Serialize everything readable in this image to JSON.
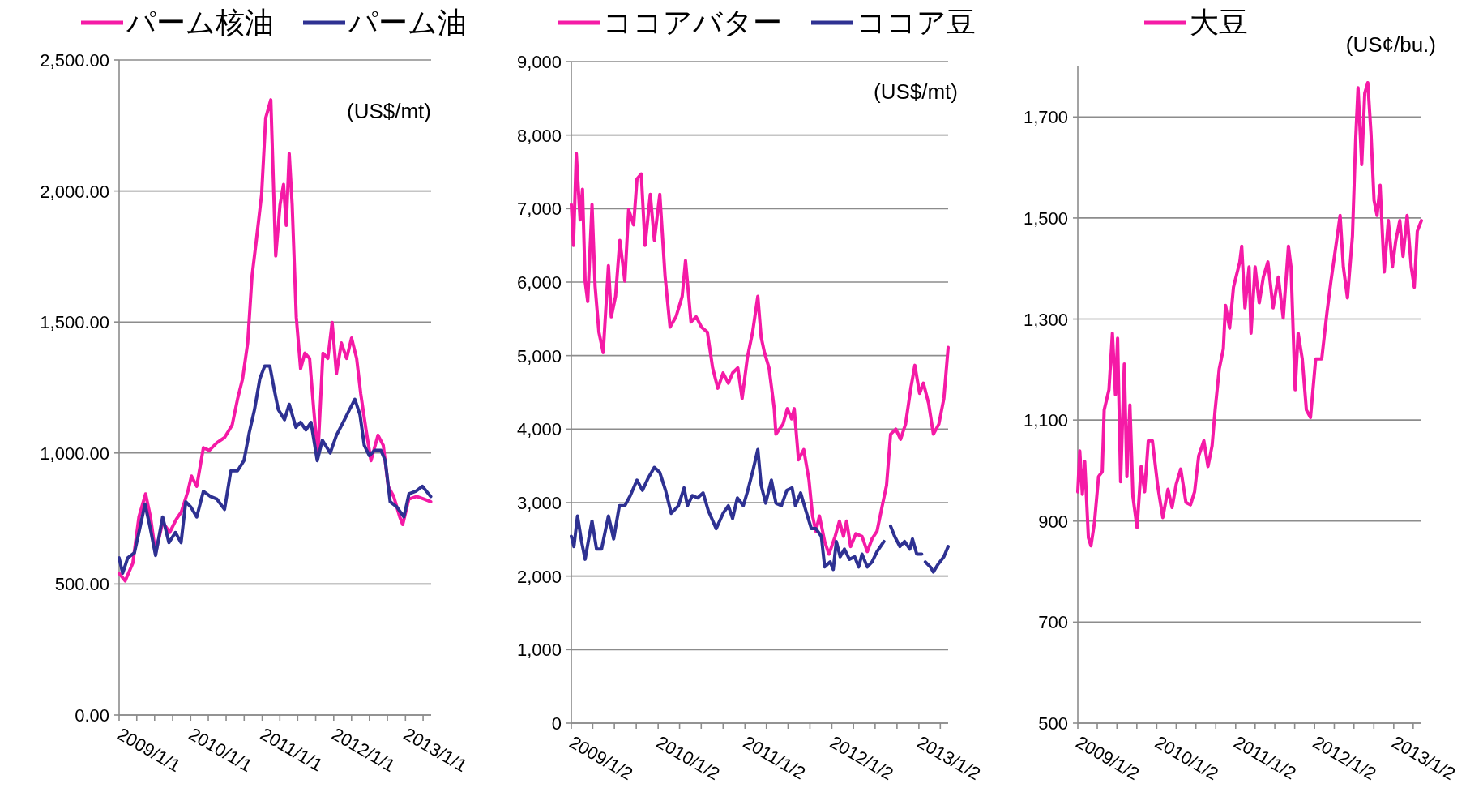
{
  "chart_data": [
    {
      "type": "line",
      "grid": "y",
      "legend": "top",
      "annotations": [
        "(US$/mt)"
      ],
      "xlim": [
        "2009-01-01",
        "2013-05-12"
      ],
      "xticks": [
        {
          "value": "2009-01-01",
          "label": "2009/1/1"
        },
        {
          "value": "2009-04-01",
          "label": null
        },
        {
          "value": "2009-07-01",
          "label": null
        },
        {
          "value": "2009-10-01",
          "label": null
        },
        {
          "value": "2010-01-01",
          "label": "2010/1/1"
        },
        {
          "value": "2010-04-01",
          "label": null
        },
        {
          "value": "2010-07-01",
          "label": null
        },
        {
          "value": "2010-10-01",
          "label": null
        },
        {
          "value": "2011-01-01",
          "label": "2011/1/1"
        },
        {
          "value": "2011-04-01",
          "label": null
        },
        {
          "value": "2011-07-01",
          "label": null
        },
        {
          "value": "2011-10-01",
          "label": null
        },
        {
          "value": "2012-01-01",
          "label": "2012/1/1"
        },
        {
          "value": "2012-04-01",
          "label": null
        },
        {
          "value": "2012-07-01",
          "label": null
        },
        {
          "value": "2012-10-01",
          "label": null
        },
        {
          "value": "2013-01-01",
          "label": "2013/1/1"
        },
        {
          "value": "2013-04-01",
          "label": null
        }
      ],
      "ylim": [
        0,
        2500
      ],
      "yticks": [
        {
          "value": 0,
          "label": "0.00"
        },
        {
          "value": 500,
          "label": "500.00"
        },
        {
          "value": 1000,
          "label": "1,000.00"
        },
        {
          "value": 1500,
          "label": "1,500.00"
        },
        {
          "value": 2000,
          "label": "2,000.00"
        },
        {
          "value": 2500,
          "label": "2,500.00"
        }
      ],
      "series": [
        {
          "name": "パーム核油",
          "color": "#f51aa6",
          "x": [
            "2009-01-01",
            "2009-02-01",
            "2009-03-12",
            "2009-04-12",
            "2009-05-16",
            "2009-06-10",
            "2009-07-06",
            "2009-08-11",
            "2009-09-16",
            "2009-10-19",
            "2009-11-14",
            "2009-12-18",
            "2010-01-05",
            "2010-02-01",
            "2010-03-07",
            "2010-04-06",
            "2010-05-15",
            "2010-06-23",
            "2010-08-01",
            "2010-08-28",
            "2010-09-23",
            "2010-10-19",
            "2010-11-10",
            "2010-12-02",
            "2010-12-29",
            "2011-01-19",
            "2011-02-14",
            "2011-03-11",
            "2011-04-02",
            "2011-04-20",
            "2011-05-04",
            "2011-05-19",
            "2011-06-03",
            "2011-06-24",
            "2011-07-16",
            "2011-08-07",
            "2011-08-31",
            "2011-09-21",
            "2011-10-12",
            "2011-11-07",
            "2011-12-02",
            "2011-12-24",
            "2012-01-15",
            "2012-02-09",
            "2012-03-07",
            "2012-04-01",
            "2012-04-27",
            "2012-05-18",
            "2012-06-14",
            "2012-07-09",
            "2012-08-14",
            "2012-09-10",
            "2012-10-05",
            "2012-11-02",
            "2012-12-03",
            "2012-12-18",
            "2013-01-18",
            "2013-02-27",
            "2013-04-06",
            "2013-05-10"
          ],
          "values": [
            541,
            512,
            580,
            756,
            844,
            756,
            619,
            736,
            697,
            746,
            775,
            854,
            912,
            873,
            1020,
            1010,
            1039,
            1059,
            1107,
            1205,
            1283,
            1420,
            1674,
            1811,
            1986,
            2279,
            2348,
            1752,
            1947,
            2025,
            1869,
            2143,
            1947,
            1518,
            1322,
            1381,
            1361,
            1166,
            990,
            1381,
            1361,
            1498,
            1303,
            1420,
            1361,
            1439,
            1361,
            1225,
            1088,
            971,
            1068,
            1029,
            873,
            834,
            756,
            727,
            824,
            834,
            824,
            814
          ]
        },
        {
          "name": "パーム油",
          "color": "#2e3192",
          "x": [
            "2009-01-01",
            "2009-01-19",
            "2009-02-14",
            "2009-03-20",
            "2009-04-12",
            "2009-05-13",
            "2009-06-08",
            "2009-07-06",
            "2009-08-11",
            "2009-09-12",
            "2009-10-15",
            "2009-11-13",
            "2009-12-07",
            "2010-01-01",
            "2010-02-01",
            "2010-03-07",
            "2010-04-12",
            "2010-05-15",
            "2010-06-23",
            "2010-07-25",
            "2010-08-28",
            "2010-09-30",
            "2010-10-27",
            "2010-11-23",
            "2010-12-20",
            "2011-01-14",
            "2011-02-09",
            "2011-03-03",
            "2011-03-24",
            "2011-04-25",
            "2011-05-19",
            "2011-06-22",
            "2011-07-16",
            "2011-08-12",
            "2011-09-07",
            "2011-10-09",
            "2011-11-04",
            "2011-12-14",
            "2012-01-15",
            "2012-02-18",
            "2012-03-22",
            "2012-04-18",
            "2012-05-14",
            "2012-06-05",
            "2012-07-01",
            "2012-07-27",
            "2012-08-29",
            "2012-09-20",
            "2012-10-15",
            "2012-11-17",
            "2012-12-24",
            "2013-01-19",
            "2013-02-23",
            "2013-03-28",
            "2013-04-18",
            "2013-05-10"
          ],
          "values": [
            600,
            541,
            600,
            619,
            697,
            805,
            717,
            609,
            756,
            658,
            697,
            658,
            814,
            795,
            756,
            854,
            834,
            824,
            785,
            932,
            932,
            971,
            1078,
            1166,
            1283,
            1332,
            1332,
            1244,
            1166,
            1127,
            1186,
            1098,
            1117,
            1088,
            1117,
            971,
            1049,
            1000,
            1068,
            1117,
            1166,
            1205,
            1146,
            1029,
            990,
            1010,
            1010,
            971,
            814,
            795,
            756,
            844,
            854,
            873,
            854,
            834
          ]
        }
      ]
    },
    {
      "type": "line",
      "grid": "y",
      "legend": "top",
      "annotations": [
        "(US$/mt)"
      ],
      "xlim": [
        "2009-01-02",
        "2013-05-05"
      ],
      "xticks": [
        {
          "value": "2009-01-02",
          "label": "2009/1/2"
        },
        {
          "value": "2009-04-02",
          "label": null
        },
        {
          "value": "2009-07-02",
          "label": null
        },
        {
          "value": "2009-10-02",
          "label": null
        },
        {
          "value": "2010-01-02",
          "label": "2010/1/2"
        },
        {
          "value": "2010-04-02",
          "label": null
        },
        {
          "value": "2010-07-02",
          "label": null
        },
        {
          "value": "2010-10-02",
          "label": null
        },
        {
          "value": "2011-01-02",
          "label": "2011/1/2"
        },
        {
          "value": "2011-04-02",
          "label": null
        },
        {
          "value": "2011-07-02",
          "label": null
        },
        {
          "value": "2011-10-02",
          "label": null
        },
        {
          "value": "2012-01-02",
          "label": "2012/1/2"
        },
        {
          "value": "2012-04-02",
          "label": null
        },
        {
          "value": "2012-07-02",
          "label": null
        },
        {
          "value": "2012-10-02",
          "label": null
        },
        {
          "value": "2013-01-02",
          "label": "2013/1/2"
        },
        {
          "value": "2013-04-02",
          "label": null
        }
      ],
      "ylim": [
        0,
        9000
      ],
      "yticks": [
        {
          "value": 0,
          "label": "0"
        },
        {
          "value": 1000,
          "label": "1,000"
        },
        {
          "value": 2000,
          "label": "2,000"
        },
        {
          "value": 3000,
          "label": "3,000"
        },
        {
          "value": 4000,
          "label": "4,000"
        },
        {
          "value": 5000,
          "label": "5,000"
        },
        {
          "value": 6000,
          "label": "6,000"
        },
        {
          "value": 7000,
          "label": "7,000"
        },
        {
          "value": 8000,
          "label": "8,000"
        },
        {
          "value": 9000,
          "label": "9,000"
        }
      ],
      "series": [
        {
          "name": "ココアバター",
          "color": "#f51aa6",
          "x": [
            "2009-01-02",
            "2009-01-11",
            "2009-01-23",
            "2009-02-08",
            "2009-02-18",
            "2009-03-01",
            "2009-03-12",
            "2009-03-30",
            "2009-04-12",
            "2009-04-28",
            "2009-05-16",
            "2009-06-07",
            "2009-06-19",
            "2009-07-07",
            "2009-07-25",
            "2009-08-15",
            "2009-08-31",
            "2009-09-21",
            "2009-10-05",
            "2009-10-23",
            "2009-11-08",
            "2009-11-30",
            "2009-12-17",
            "2010-01-09",
            "2010-01-31",
            "2010-02-21",
            "2010-03-18",
            "2010-04-13",
            "2010-04-27",
            "2010-05-20",
            "2010-06-11",
            "2010-07-03",
            "2010-07-28",
            "2010-08-19",
            "2010-09-10",
            "2010-10-02",
            "2010-10-24",
            "2010-11-11",
            "2010-12-03",
            "2010-12-21",
            "2011-01-12",
            "2011-02-03",
            "2011-02-25",
            "2011-03-11",
            "2011-03-25",
            "2011-04-13",
            "2011-05-05",
            "2011-05-12",
            "2011-06-11",
            "2011-06-29",
            "2011-07-17",
            "2011-07-28",
            "2011-08-15",
            "2011-09-06",
            "2011-09-28",
            "2011-10-13",
            "2011-10-27",
            "2011-11-11",
            "2011-12-03",
            "2011-12-21",
            "2012-01-16",
            "2012-02-03",
            "2012-02-20",
            "2012-03-04",
            "2012-03-21",
            "2012-04-12",
            "2012-05-08",
            "2012-05-30",
            "2012-06-19",
            "2012-07-10",
            "2012-08-01",
            "2012-08-19",
            "2012-09-05",
            "2012-09-27",
            "2012-10-17",
            "2012-11-07",
            "2012-11-29",
            "2012-12-16",
            "2013-01-05",
            "2013-01-21",
            "2013-02-12",
            "2013-03-04",
            "2013-03-27",
            "2013-04-17",
            "2013-05-05"
          ],
          "values": [
            7056,
            6500,
            7750,
            6847,
            7264,
            6014,
            5736,
            7056,
            5944,
            5319,
            5042,
            6222,
            5528,
            5806,
            6569,
            6014,
            6986,
            6778,
            7403,
            7472,
            6500,
            7194,
            6569,
            7194,
            6083,
            5389,
            5528,
            5806,
            6292,
            5458,
            5528,
            5389,
            5319,
            4833,
            4556,
            4764,
            4625,
            4764,
            4833,
            4417,
            4972,
            5319,
            5806,
            5250,
            5042,
            4833,
            4278,
            3931,
            4069,
            4278,
            4139,
            4278,
            3583,
            3722,
            3306,
            2819,
            2611,
            2819,
            2472,
            2299,
            2542,
            2750,
            2542,
            2750,
            2403,
            2576,
            2542,
            2333,
            2507,
            2611,
            2958,
            3236,
            3931,
            4000,
            3861,
            4069,
            4556,
            4868,
            4486,
            4625,
            4347,
            3931,
            4069,
            4417,
            5111
          ]
        },
        {
          "name": "ココア豆",
          "color": "#2e3192",
          "x": [
            "2009-01-02",
            "2009-01-13",
            "2009-01-28",
            "2009-02-14",
            "2009-03-01",
            "2009-03-18",
            "2009-03-30",
            "2009-04-18",
            "2009-05-09",
            "2009-06-07",
            "2009-06-29",
            "2009-07-23",
            "2009-08-15",
            "2009-09-07",
            "2009-10-05",
            "2009-10-28",
            "2009-11-22",
            "2009-12-17",
            "2010-01-09",
            "2010-02-02",
            "2010-02-26",
            "2010-03-28",
            "2010-04-21",
            "2010-05-05",
            "2010-05-26",
            "2010-06-17",
            "2010-07-10",
            "2010-08-01",
            "2010-09-03",
            "2010-10-02",
            "2010-10-24",
            "2010-11-11",
            "2010-12-01",
            "2010-12-26",
            "2011-01-14",
            "2011-02-05",
            "2011-02-25",
            "2011-03-11",
            "2011-03-30",
            "2011-04-23",
            "2011-05-12",
            "2011-06-04",
            "2011-06-27",
            "2011-07-19",
            "2011-08-02",
            "2011-08-24",
            "2011-09-15",
            "2011-10-08",
            "2011-10-27",
            "2011-11-19",
            "2011-12-03",
            "2011-12-26",
            "2012-01-08",
            "2012-01-21",
            "2012-02-06",
            "2012-02-24",
            "2012-03-16",
            "2012-04-07",
            "2012-04-24",
            "2012-05-08",
            "2012-05-30",
            "2012-06-19",
            "2012-07-10",
            "2012-08-08",
            "2012-08-22",
            "2012-09-05",
            "2012-09-22",
            "2012-10-14",
            "2012-11-03",
            "2012-11-25",
            "2012-12-06",
            "2012-12-24",
            "2013-01-14",
            "2013-01-22",
            "2013-01-29",
            "2013-02-19",
            "2013-03-04",
            "2013-03-23",
            "2013-04-17",
            "2013-05-05"
          ],
          "values": [
            2542,
            2403,
            2819,
            2472,
            2229,
            2542,
            2750,
            2368,
            2368,
            2819,
            2507,
            2958,
            2958,
            3097,
            3306,
            3167,
            3340,
            3479,
            3410,
            3167,
            2854,
            2958,
            3201,
            2958,
            3097,
            3063,
            3132,
            2889,
            2646,
            2854,
            2958,
            2785,
            3063,
            2958,
            3167,
            3444,
            3722,
            3236,
            2993,
            3306,
            2993,
            2958,
            3167,
            3201,
            2958,
            3132,
            2889,
            2646,
            2646,
            2542,
            2125,
            2194,
            2090,
            2472,
            2264,
            2368,
            2229,
            2264,
            2125,
            2299,
            2125,
            2194,
            2333,
            2472,
            null,
            2681,
            2542,
            2403,
            2472,
            2368,
            2507,
            2299,
            2299,
            null,
            2194,
            2125,
            2056,
            2160,
            2264,
            2403
          ]
        }
      ]
    },
    {
      "type": "line",
      "grid": "y",
      "legend": "top",
      "annotations": [
        "(US¢/bu.)"
      ],
      "xlim": [
        "2009-01-02",
        "2013-05-10"
      ],
      "xticks": [
        {
          "value": "2009-01-02",
          "label": "2009/1/2"
        },
        {
          "value": "2009-04-02",
          "label": null
        },
        {
          "value": "2009-07-02",
          "label": null
        },
        {
          "value": "2009-10-02",
          "label": null
        },
        {
          "value": "2010-01-02",
          "label": "2010/1/2"
        },
        {
          "value": "2010-04-02",
          "label": null
        },
        {
          "value": "2010-07-02",
          "label": null
        },
        {
          "value": "2010-10-02",
          "label": null
        },
        {
          "value": "2011-01-02",
          "label": "2011/1/2"
        },
        {
          "value": "2011-04-02",
          "label": null
        },
        {
          "value": "2011-07-02",
          "label": null
        },
        {
          "value": "2011-10-02",
          "label": null
        },
        {
          "value": "2012-01-02",
          "label": "2012/1/2"
        },
        {
          "value": "2012-04-02",
          "label": null
        },
        {
          "value": "2012-07-02",
          "label": null
        },
        {
          "value": "2012-10-02",
          "label": null
        },
        {
          "value": "2013-01-02",
          "label": "2013/1/2"
        },
        {
          "value": "2013-04-02",
          "label": null
        }
      ],
      "ylim": [
        500,
        1800
      ],
      "yticks": [
        {
          "value": 500,
          "label": "500"
        },
        {
          "value": 700,
          "label": "700"
        },
        {
          "value": 900,
          "label": "900"
        },
        {
          "value": 1100,
          "label": "1,100"
        },
        {
          "value": 1300,
          "label": "1,300"
        },
        {
          "value": 1500,
          "label": "1,500"
        },
        {
          "value": 1700,
          "label": "1,700"
        }
      ],
      "series": [
        {
          "name": "大豆",
          "color": "#f51aa6",
          "x": [
            "2009-01-02",
            "2009-01-11",
            "2009-01-23",
            "2009-02-03",
            "2009-02-20",
            "2009-03-04",
            "2009-03-20",
            "2009-04-08",
            "2009-04-25",
            "2009-05-04",
            "2009-05-26",
            "2009-06-11",
            "2009-06-25",
            "2009-07-05",
            "2009-07-19",
            "2009-08-05",
            "2009-08-17",
            "2009-08-31",
            "2009-09-14",
            "2009-10-03",
            "2009-10-22",
            "2009-11-07",
            "2009-11-24",
            "2009-12-13",
            "2010-01-07",
            "2010-01-30",
            "2010-02-23",
            "2010-03-14",
            "2010-04-02",
            "2010-04-23",
            "2010-05-17",
            "2010-06-07",
            "2010-06-26",
            "2010-07-15",
            "2010-08-08",
            "2010-08-27",
            "2010-09-15",
            "2010-09-29",
            "2010-10-18",
            "2010-11-06",
            "2010-11-16",
            "2010-12-05",
            "2010-12-23",
            "2011-01-21",
            "2011-01-30",
            "2011-02-14",
            "2011-03-05",
            "2011-03-14",
            "2011-04-02",
            "2011-04-21",
            "2011-05-10",
            "2011-05-31",
            "2011-06-24",
            "2011-07-18",
            "2011-08-10",
            "2011-09-03",
            "2011-09-15",
            "2011-10-04",
            "2011-10-18",
            "2011-11-06",
            "2011-11-25",
            "2011-12-14",
            "2012-01-07",
            "2012-02-04",
            "2012-02-28",
            "2012-03-17",
            "2012-04-06",
            "2012-04-29",
            "2012-05-14",
            "2012-06-02",
            "2012-06-25",
            "2012-07-10",
            "2012-07-21",
            "2012-08-07",
            "2012-08-21",
            "2012-09-04",
            "2012-09-19",
            "2012-10-03",
            "2012-10-17",
            "2012-10-31",
            "2012-11-19",
            "2012-12-08",
            "2012-12-27",
            "2013-01-11",
            "2013-01-30",
            "2013-02-14",
            "2013-03-05",
            "2013-03-24",
            "2013-04-07",
            "2013-04-21",
            "2013-05-10"
          ],
          "values": [
            958,
            1039,
            953,
            1018,
            867,
            851,
            897,
            988,
            998,
            1120,
            1160,
            1272,
            1150,
            1262,
            978,
            1211,
            988,
            1130,
            948,
            887,
            1008,
            958,
            1059,
            1059,
            968,
            907,
            963,
            927,
            973,
            1003,
            937,
            932,
            958,
            1029,
            1059,
            1008,
            1049,
            1120,
            1201,
            1241,
            1327,
            1282,
            1363,
            1413,
            1444,
            1322,
            1403,
            1272,
            1403,
            1332,
            1383,
            1413,
            1322,
            1383,
            1302,
            1444,
            1403,
            1160,
            1272,
            1221,
            1120,
            1105,
            1221,
            1221,
            1312,
            1373,
            1434,
            1505,
            1403,
            1342,
            1464,
            1656,
            1758,
            1606,
            1747,
            1768,
            1666,
            1535,
            1505,
            1565,
            1393,
            1495,
            1403,
            1454,
            1495,
            1424,
            1505,
            1403,
            1363,
            1474,
            1495
          ]
        }
      ]
    }
  ]
}
